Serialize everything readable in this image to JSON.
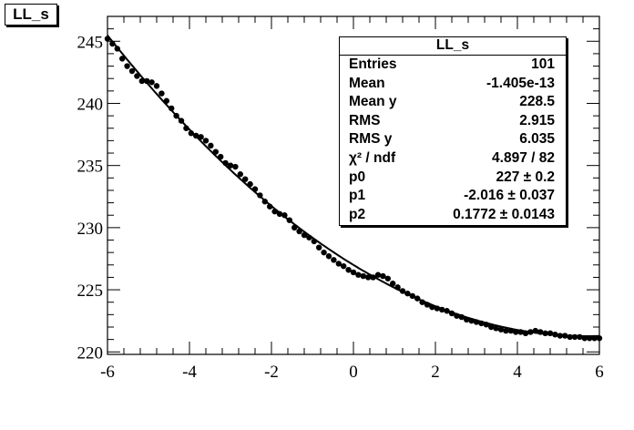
{
  "title": "LL_s",
  "stats": {
    "title": "LL_s",
    "rows": [
      {
        "key": "Entries",
        "value": "101"
      },
      {
        "key": "Mean",
        "value": "-1.405e-13"
      },
      {
        "key": "Mean y",
        "value": "228.5"
      },
      {
        "key": "RMS",
        "value": "2.915"
      },
      {
        "key": "RMS y",
        "value": "6.035"
      },
      {
        "key": "χ² / ndf",
        "value": "4.897 / 82"
      },
      {
        "key": "p0",
        "value": "227 ± 0.2"
      },
      {
        "key": "p1",
        "value": "-2.016 ± 0.037"
      },
      {
        "key": "p2",
        "value": "0.1772 ± 0.0143"
      }
    ]
  },
  "chart_data": {
    "type": "scatter",
    "xlim": [
      -6,
      6
    ],
    "ylim": [
      219.8,
      247
    ],
    "xticks": [
      -6,
      -4,
      -2,
      0,
      2,
      4,
      6
    ],
    "yticks": [
      220,
      225,
      230,
      235,
      240,
      245
    ],
    "x_minor_step": 0.4,
    "y_minor_step": 1,
    "fit": {
      "function": "pol2",
      "p0": 227,
      "p1": -2.016,
      "p2": 0.1772,
      "x_range": [
        -6,
        6
      ]
    },
    "points": {
      "x": [
        -6.0,
        -5.88,
        -5.76,
        -5.64,
        -5.52,
        -5.4,
        -5.28,
        -5.16,
        -5.04,
        -4.92,
        -4.8,
        -4.68,
        -4.56,
        -4.44,
        -4.32,
        -4.2,
        -4.08,
        -3.96,
        -3.84,
        -3.72,
        -3.6,
        -3.48,
        -3.36,
        -3.24,
        -3.12,
        -3.0,
        -2.88,
        -2.76,
        -2.64,
        -2.52,
        -2.4,
        -2.28,
        -2.16,
        -2.04,
        -1.92,
        -1.8,
        -1.68,
        -1.56,
        -1.44,
        -1.32,
        -1.2,
        -1.08,
        -0.96,
        -0.84,
        -0.72,
        -0.6,
        -0.48,
        -0.36,
        -0.24,
        -0.12,
        0.0,
        0.12,
        0.24,
        0.36,
        0.48,
        0.6,
        0.72,
        0.84,
        0.96,
        1.08,
        1.2,
        1.32,
        1.44,
        1.56,
        1.68,
        1.8,
        1.92,
        2.04,
        2.16,
        2.28,
        2.4,
        2.52,
        2.64,
        2.76,
        2.88,
        3.0,
        3.12,
        3.24,
        3.36,
        3.48,
        3.6,
        3.72,
        3.84,
        3.96,
        4.08,
        4.2,
        4.32,
        4.44,
        4.56,
        4.68,
        4.8,
        4.92,
        5.04,
        5.16,
        5.28,
        5.4,
        5.52,
        5.64,
        5.76,
        5.88,
        6.0
      ],
      "y": [
        245.2,
        244.8,
        244.4,
        243.6,
        243.0,
        242.6,
        242.2,
        241.8,
        241.8,
        241.7,
        241.4,
        240.8,
        240.2,
        239.6,
        239.0,
        238.6,
        238.0,
        237.6,
        237.4,
        237.3,
        237.0,
        236.6,
        236.1,
        235.7,
        235.2,
        235.0,
        234.9,
        234.3,
        233.9,
        233.5,
        233.1,
        232.6,
        232.1,
        231.7,
        231.3,
        231.1,
        231.0,
        230.6,
        230.0,
        229.7,
        229.4,
        229.2,
        228.9,
        228.4,
        228.0,
        227.7,
        227.4,
        227.1,
        226.9,
        226.6,
        226.4,
        226.2,
        226.1,
        226.0,
        226.0,
        226.2,
        226.1,
        225.9,
        225.5,
        225.2,
        224.9,
        224.7,
        224.5,
        224.3,
        224.0,
        223.8,
        223.6,
        223.5,
        223.4,
        223.3,
        223.1,
        222.9,
        222.8,
        222.6,
        222.5,
        222.4,
        222.3,
        222.2,
        222.0,
        221.9,
        221.8,
        221.7,
        221.7,
        221.6,
        221.6,
        221.5,
        221.6,
        221.7,
        221.6,
        221.5,
        221.5,
        221.4,
        221.3,
        221.3,
        221.2,
        221.2,
        221.2,
        221.1,
        221.1,
        221.1,
        221.1
      ]
    }
  }
}
